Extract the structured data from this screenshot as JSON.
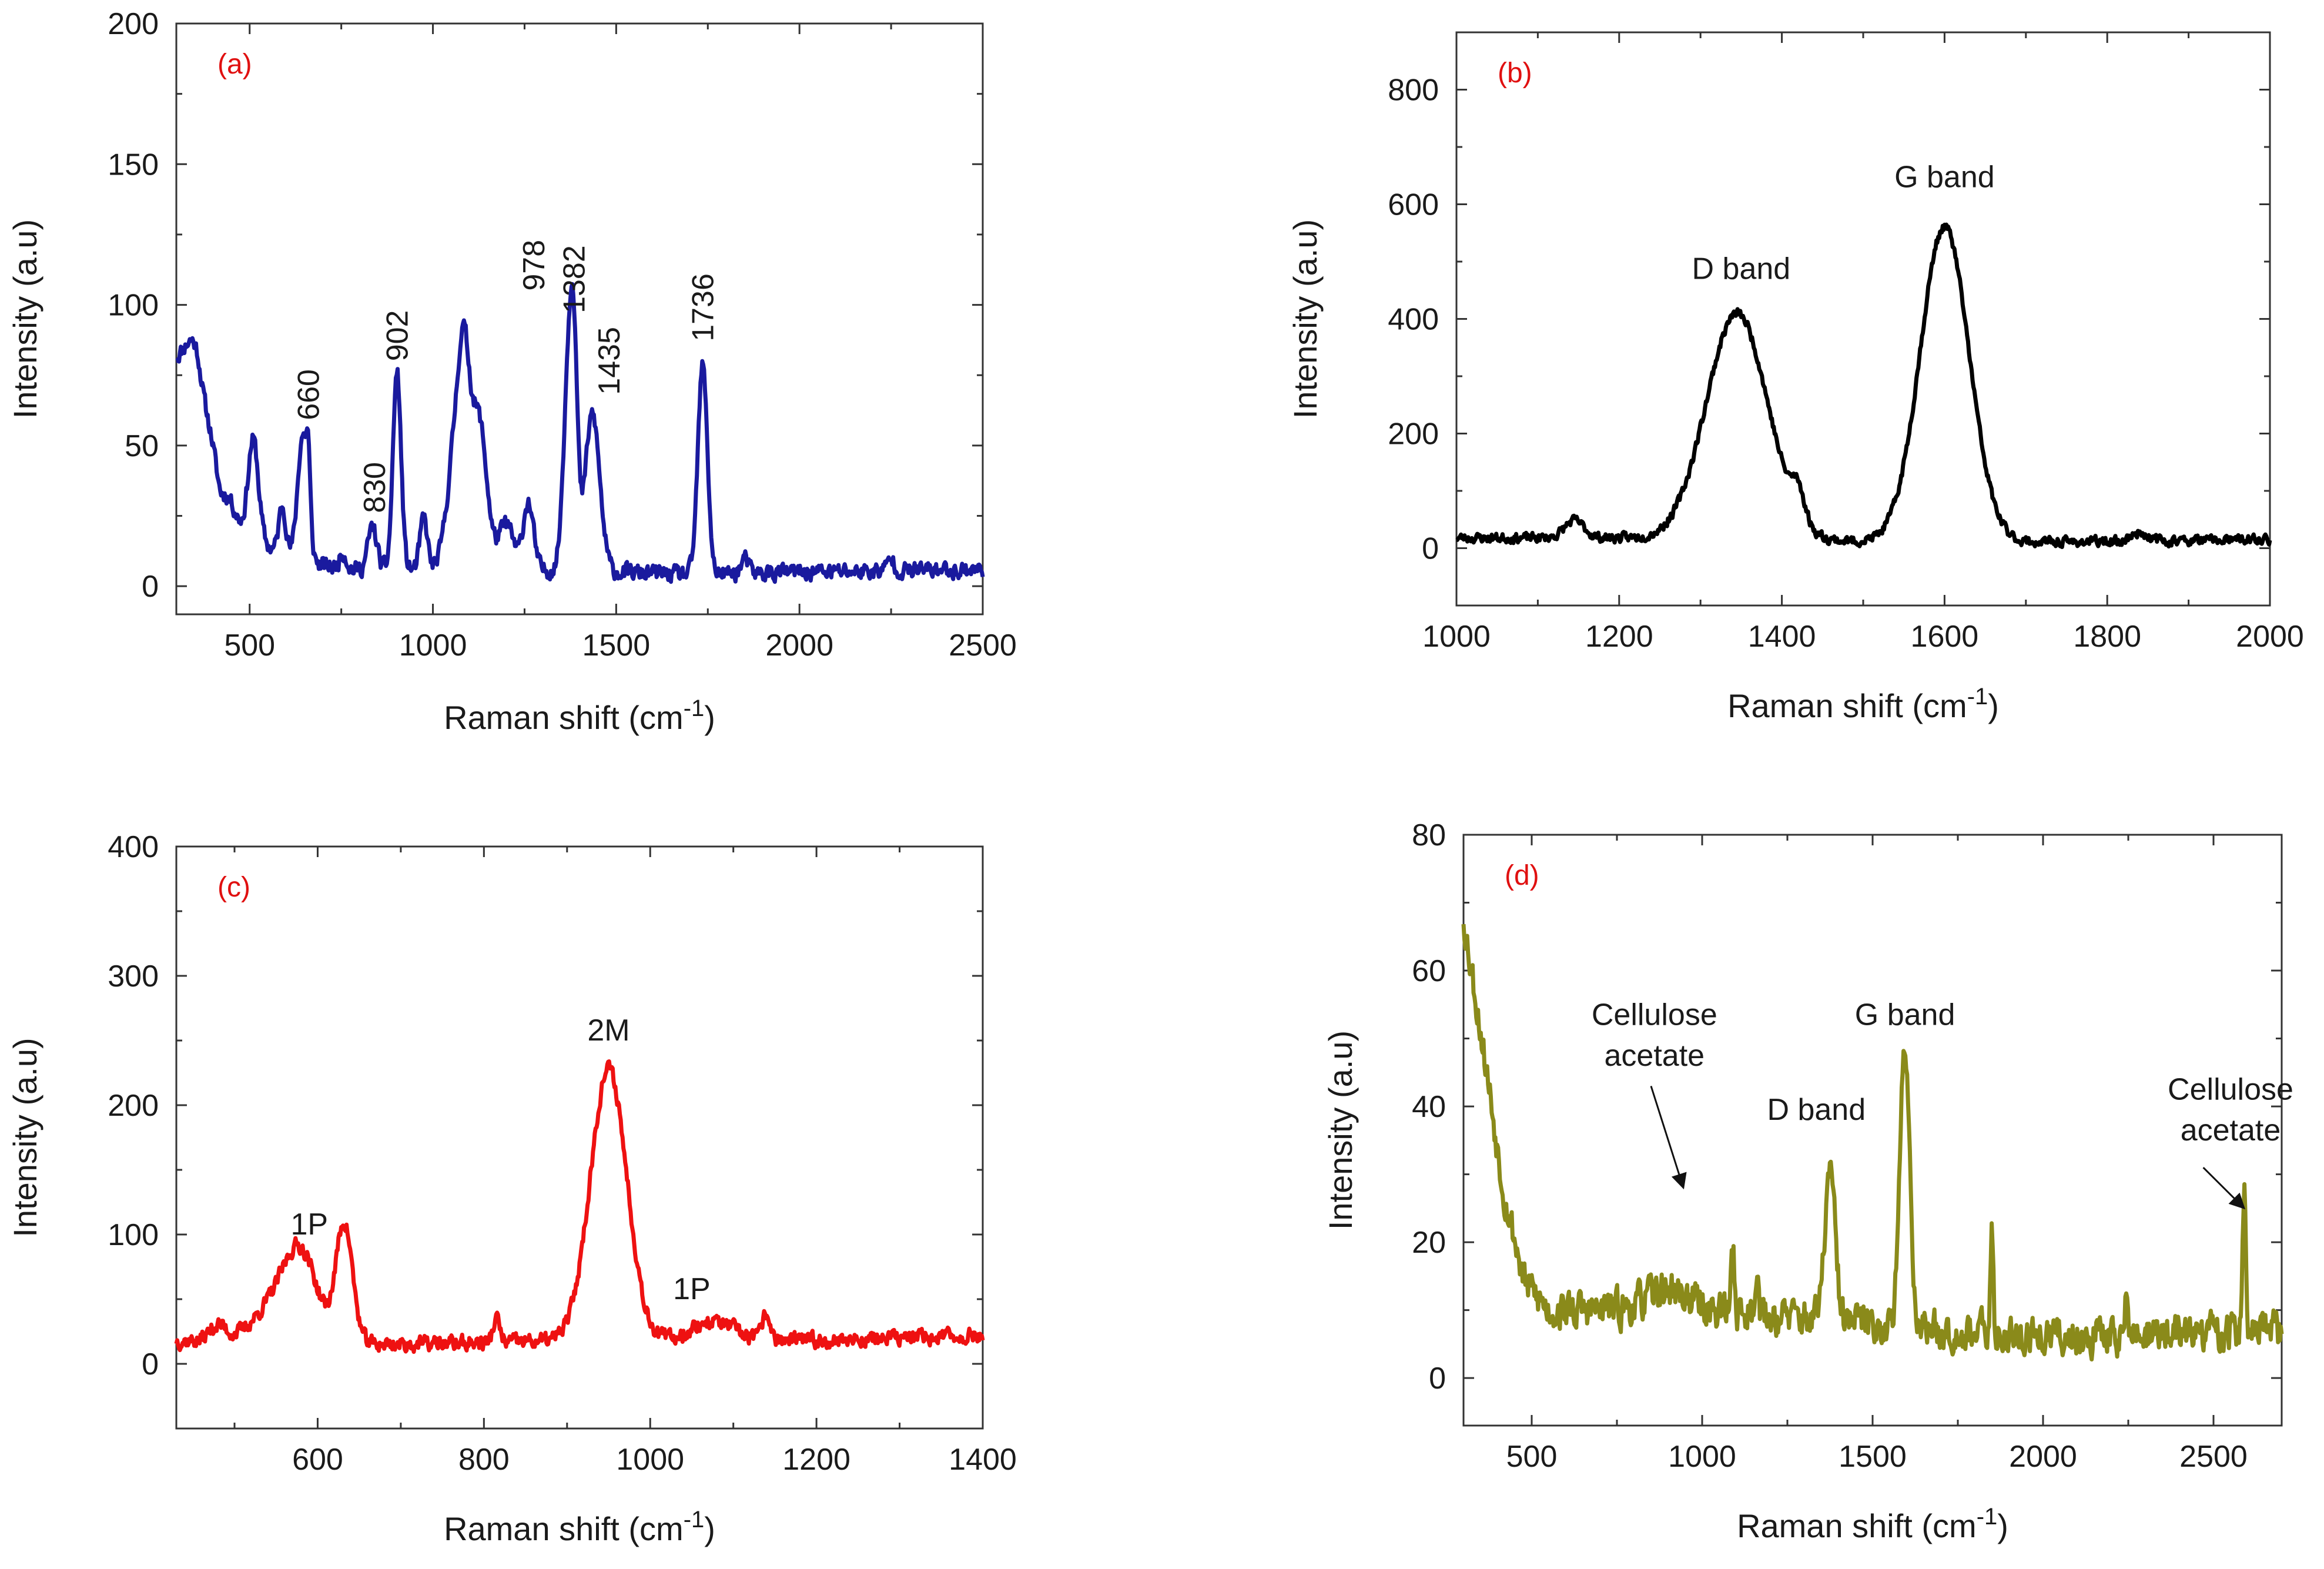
{
  "chart_data": [
    {
      "id": "a",
      "type": "line",
      "panel_label": "(a)",
      "xlabel": "Raman shift (cm",
      "xlabel_sup": "-1",
      "xlabel_close": ")",
      "ylabel": "Intensity (a.u)",
      "xlim": [
        300,
        2500
      ],
      "ylim": [
        -10,
        200
      ],
      "xticks": [
        500,
        1000,
        1500,
        2000,
        2500
      ],
      "yticks": [
        0,
        50,
        100,
        150,
        200
      ],
      "color": "#1a1a9e",
      "series": [
        {
          "name": "(a)",
          "peaks": [
            [
              320,
              25,
              15
            ],
            [
              355,
              20,
              22
            ],
            [
              395,
              15,
              12
            ],
            [
              440,
              20,
              8
            ],
            [
              510,
              14,
              35
            ],
            [
              590,
              10,
              18
            ],
            [
              645,
              14,
              45
            ],
            [
              660,
              5,
              20
            ],
            [
              755,
              10,
              6
            ],
            [
              835,
              12,
              15
            ],
            [
              902,
              11,
              70
            ],
            [
              975,
              10,
              18
            ],
            [
              1060,
              22,
              40
            ],
            [
              1085,
              16,
              55
            ],
            [
              1125,
              22,
              53
            ],
            [
              1200,
              20,
              16
            ],
            [
              1260,
              14,
              24
            ],
            [
              1370,
              14,
              70
            ],
            [
              1385,
              10,
              55
            ],
            [
              1435,
              20,
              56
            ],
            [
              1736,
              13,
              74
            ],
            [
              1850,
              10,
              5
            ],
            [
              2250,
              10,
              4
            ]
          ],
          "baseline": [
            [
              300,
              70
            ],
            [
              360,
              55
            ],
            [
              420,
              26
            ],
            [
              500,
              18
            ],
            [
              600,
              10
            ],
            [
              750,
              6
            ],
            [
              900,
              6
            ],
            [
              1200,
              6
            ],
            [
              1500,
              5
            ],
            [
              1700,
              4
            ],
            [
              2000,
              5
            ],
            [
              2500,
              6
            ]
          ],
          "noise": 2.5,
          "seed": 11
        }
      ],
      "annotations": [
        {
          "text": "660",
          "x": 660,
          "y": 59,
          "rotate": true
        },
        {
          "text": "830",
          "x": 840,
          "y": 26,
          "rotate": true
        },
        {
          "text": "902",
          "x": 902,
          "y": 80,
          "rotate": true
        },
        {
          "text": "978",
          "x": 1275,
          "y": 105,
          "rotate": true
        },
        {
          "text": "1382",
          "x": 1385,
          "y": 97,
          "rotate": true
        },
        {
          "text": "1435",
          "x": 1480,
          "y": 68,
          "rotate": true
        },
        {
          "text": "1736",
          "x": 1736,
          "y": 87,
          "rotate": true
        }
      ]
    },
    {
      "id": "b",
      "type": "line",
      "panel_label": "(b)",
      "xlabel": "Raman shift (cm",
      "xlabel_sup": "-1",
      "xlabel_close": ")",
      "ylabel": "Intensity (a.u)",
      "xlim": [
        1000,
        2000
      ],
      "ylim": [
        -100,
        900
      ],
      "xticks": [
        1000,
        1200,
        1400,
        1600,
        1800,
        2000
      ],
      "yticks": [
        0,
        200,
        400,
        600,
        800
      ],
      "color": "#000000",
      "series": [
        {
          "name": "(b)",
          "peaks": [
            [
              1345,
              38,
              395
            ],
            [
              1420,
              8,
              50
            ],
            [
              1600,
              30,
              550
            ],
            [
              1145,
              12,
              30
            ],
            [
              1840,
              10,
              15
            ]
          ],
          "baseline": [
            [
              1000,
              18
            ],
            [
              1200,
              18
            ],
            [
              1450,
              12
            ],
            [
              1700,
              10
            ],
            [
              2000,
              15
            ]
          ],
          "noise": 7,
          "seed": 23
        }
      ],
      "annotations": [
        {
          "text": "D band",
          "x": 1350,
          "y": 470,
          "rotate": false
        },
        {
          "text": "G band",
          "x": 1600,
          "y": 630,
          "rotate": false
        }
      ]
    },
    {
      "id": "c",
      "type": "line",
      "panel_label": "(c)",
      "xlabel": "Raman shift (cm",
      "xlabel_sup": "-1",
      "xlabel_close": ")",
      "ylabel": "Intensity (a.u)",
      "xlim": [
        430,
        1400
      ],
      "ylim": [
        -50,
        400
      ],
      "xticks": [
        600,
        800,
        1000,
        1200,
        1400
      ],
      "yticks": [
        0,
        100,
        200,
        300,
        400
      ],
      "color": "#ee1111",
      "series": [
        {
          "name": "(c)",
          "peaks": [
            [
              580,
              20,
              65
            ],
            [
              632,
              10,
              92
            ],
            [
              545,
              25,
              25
            ],
            [
              950,
              22,
              210
            ],
            [
              1075,
              25,
              15
            ],
            [
              1140,
              5,
              20
            ],
            [
              815,
              4,
              18
            ],
            [
              480,
              10,
              12
            ]
          ],
          "baseline": [
            [
              430,
              18
            ],
            [
              700,
              15
            ],
            [
              900,
              18
            ],
            [
              1200,
              18
            ],
            [
              1400,
              22
            ]
          ],
          "noise": 5,
          "seed": 37
        }
      ],
      "annotations": [
        {
          "text": "1P",
          "x": 590,
          "y": 100,
          "rotate": false
        },
        {
          "text": "2M",
          "x": 950,
          "y": 250,
          "rotate": false
        },
        {
          "text": "1P",
          "x": 1050,
          "y": 50,
          "rotate": false
        }
      ]
    },
    {
      "id": "d",
      "type": "line",
      "panel_label": "(d)",
      "xlabel": "Raman shift (cm",
      "xlabel_sup": "-1",
      "xlabel_close": ")",
      "ylabel": "Intensity (a.u)",
      "xlim": [
        300,
        2700
      ],
      "ylim": [
        -7,
        80
      ],
      "xticks": [
        500,
        1000,
        1500,
        2000,
        2500
      ],
      "yticks": [
        0,
        20,
        40,
        60,
        80
      ],
      "color": "#8a8a1a",
      "series": [
        {
          "name": "(d)",
          "peaks": [
            [
              1375,
              15,
              22
            ],
            [
              1595,
              14,
              42
            ],
            [
              1850,
              4,
              14
            ],
            [
              2590,
              5,
              20
            ],
            [
              1090,
              5,
              10
            ],
            [
              1160,
              5,
              8
            ],
            [
              2245,
              4,
              6
            ],
            [
              900,
              60,
              3
            ]
          ],
          "baseline": [
            [
              300,
              68
            ],
            [
              360,
              48
            ],
            [
              420,
              27
            ],
            [
              480,
              14
            ],
            [
              550,
              10
            ],
            [
              1000,
              10
            ],
            [
              1500,
              8
            ],
            [
              2000,
              6
            ],
            [
              2700,
              7
            ]
          ],
          "noise": 2.4,
          "seed": 53
        }
      ],
      "annotations": [
        {
          "text": "Cellulose",
          "x": 860,
          "y": 52,
          "rotate": false
        },
        {
          "text": "acetate",
          "x": 860,
          "y": 46,
          "rotate": false
        },
        {
          "text": "D band",
          "x": 1335,
          "y": 38,
          "rotate": false
        },
        {
          "text": "G band",
          "x": 1595,
          "y": 52,
          "rotate": false
        },
        {
          "text": "Cellulose",
          "x": 2550,
          "y": 41,
          "rotate": false
        },
        {
          "text": "acetate",
          "x": 2550,
          "y": 35,
          "rotate": false
        }
      ],
      "arrows": [
        {
          "from": [
            850,
            43
          ],
          "to": [
            945,
            28
          ]
        },
        {
          "from": [
            2470,
            31
          ],
          "to": [
            2590,
            25
          ]
        }
      ]
    }
  ]
}
